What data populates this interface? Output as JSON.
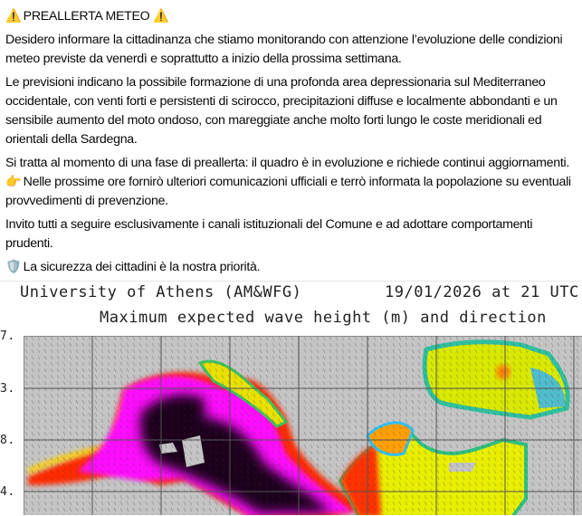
{
  "post": {
    "title": "PREALLERTA METEO",
    "title_icon": "warning-sign",
    "paragraphs": [
      "Desidero informare la cittadinanza che stiamo monitorando con attenzione l’evoluzione delle condizioni meteo previste da venerdì e soprattutto a inizio della prossima settimana.",
      "Le previsioni indicano la possibile formazione di una profonda area depressionaria sul Mediterraneo occidentale, con venti forti e persistenti di scirocco, precipitazioni diffuse e localmente abbondanti e un sensibile aumento del moto ondoso, con mareggiate anche molto forti lungo le coste meridionali ed orientali della Sardegna.",
      "Si tratta al momento di una fase di preallerta: il quadro è in evoluzione e richiede continui aggiornamenti."
    ],
    "pointer_line": "Nelle prossime ore fornirò ulteriori comunicazioni ufficiali e terrò informata la popolazione su eventuali provvedimenti di prevenzione.",
    "pointer_icon": "pointing-hand",
    "invite": "Invito tutti a seguire esclusivamente i canali istituzionali del Comune e ad adottare comportamenti prudenti.",
    "closing": "La sicurezza dei cittadini è la nostra priorità.",
    "closing_icon": "shield"
  },
  "image": {
    "source": "University of Athens (AM&WFG)",
    "datetime": "19/01/2026 at 21 UTC",
    "title": "Maximum expected wave height (m) and direction",
    "lat_labels": [
      "7.",
      "3.",
      "8.",
      "4."
    ],
    "colors": {
      "land": "#c4c4c4",
      "grid": "#555555",
      "max": "#000000",
      "high": "#ff00ff",
      "mid": "#ff3000",
      "low": "#ffee00",
      "lowest": "#30c0ff"
    }
  }
}
